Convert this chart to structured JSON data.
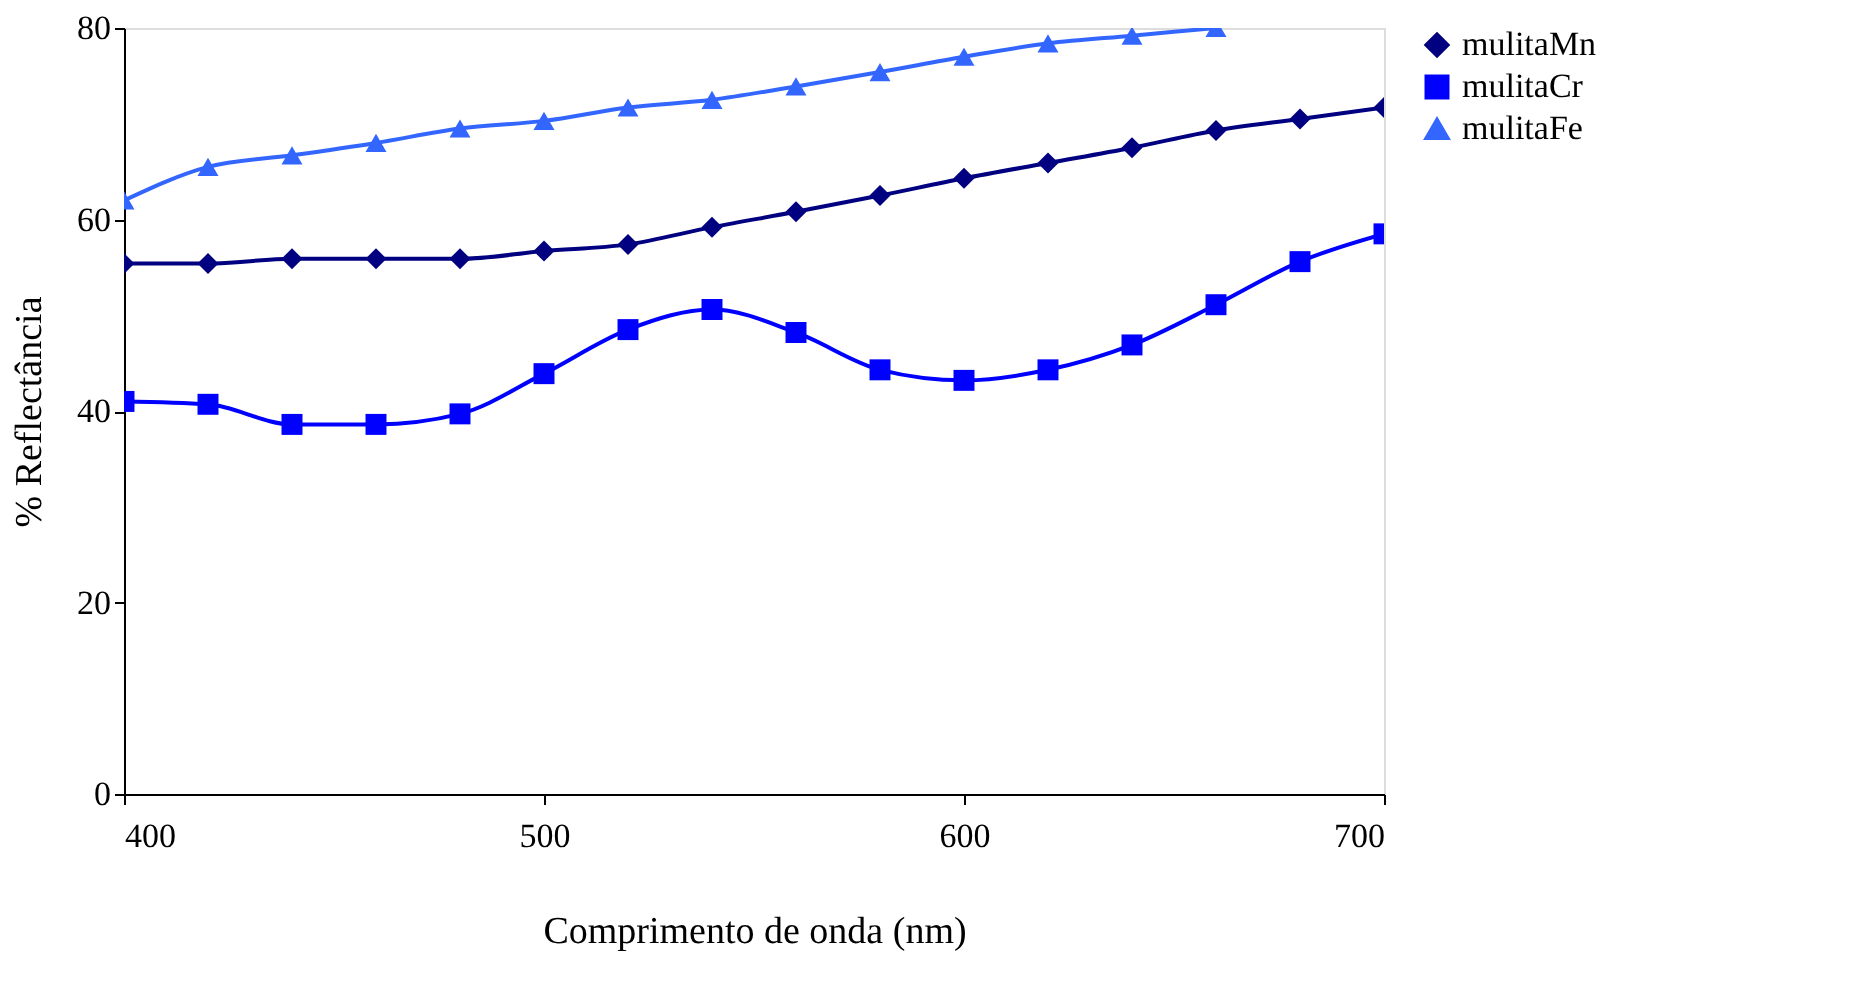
{
  "chart_data": {
    "type": "line",
    "xlabel": "Comprimento de onda (nm)",
    "ylabel": "% Reflectância",
    "x": [
      400,
      420,
      440,
      460,
      480,
      500,
      520,
      540,
      560,
      580,
      600,
      620,
      640,
      660,
      680,
      700
    ],
    "series": [
      {
        "name": "mulitaMn",
        "color": "#000080",
        "marker": "diamond",
        "values": [
          55.4,
          55.4,
          55.9,
          55.9,
          55.9,
          56.7,
          57.4,
          59.2,
          60.8,
          62.5,
          64.3,
          65.9,
          67.5,
          69.3,
          70.5,
          71.7
        ]
      },
      {
        "name": "mulitaCr",
        "color": "#0000ff",
        "marker": "square",
        "values": [
          41.0,
          40.7,
          38.6,
          38.6,
          39.7,
          43.9,
          48.5,
          50.6,
          48.2,
          44.3,
          43.2,
          44.3,
          46.9,
          51.1,
          55.6,
          58.5
        ]
      },
      {
        "name": "mulitaFe",
        "color": "#3366ff",
        "marker": "triangle",
        "values": [
          62.0,
          65.5,
          66.7,
          68.0,
          69.5,
          70.3,
          71.7,
          72.5,
          73.9,
          75.4,
          77.0,
          78.4,
          79.2,
          80.0,
          null,
          null
        ]
      }
    ],
    "xlim": [
      400,
      700
    ],
    "xticks": [
      400,
      500,
      600,
      700
    ],
    "ylim": [
      0,
      80
    ],
    "yticks": [
      0,
      20,
      40,
      60,
      80
    ],
    "grid": false,
    "legend": "right",
    "line_style": "solid"
  }
}
